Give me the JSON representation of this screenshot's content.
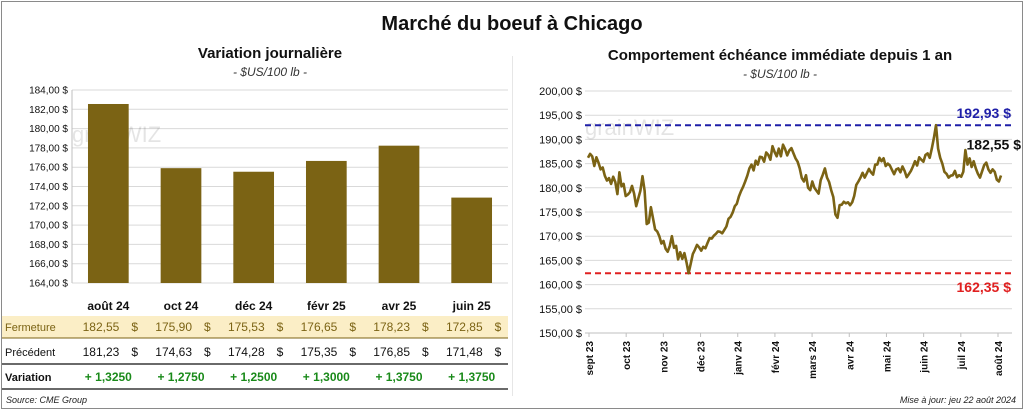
{
  "title": "Marché du boeuf à Chicago",
  "left_panel": {
    "subtitle": "Variation  journalière",
    "unit": "- $US/100 lb -",
    "watermark": "grainWIZ",
    "table": {
      "row_labels": [
        "Fermeture",
        "Précédent",
        "Variation"
      ],
      "fermeture": [
        "182,55",
        "175,90",
        "175,53",
        "176,65",
        "178,23",
        "172,85"
      ],
      "precedent": [
        "181,23",
        "174,63",
        "174,28",
        "175,35",
        "176,85",
        "171,48"
      ],
      "variation": [
        "+ 1,3250",
        "+ 1,2750",
        "+ 1,2500",
        "+ 1,3000",
        "+ 1,3750",
        "+ 1,3750"
      ],
      "currency": "$"
    },
    "source": "Source: CME Group"
  },
  "right_panel": {
    "subtitle": "Comportement  échéance immédiate depuis 1 an",
    "unit": "- $US/100 lb -",
    "watermark": "grainWIZ",
    "update": "Mise à jour: jeu 22 août 2024"
  },
  "colors": {
    "bar": "#7b6314",
    "line": "#7b6314",
    "max": "#1f1fa8",
    "min": "#e02020",
    "table_bg": "#fbeec6",
    "variation": "#1a8a1a"
  },
  "chart_data": [
    {
      "type": "bar",
      "categories": [
        "août 24",
        "oct 24",
        "déc 24",
        "févr 25",
        "avr 25",
        "juin 25"
      ],
      "values": [
        182.55,
        175.9,
        175.53,
        176.65,
        178.23,
        172.85
      ],
      "ylim": [
        164,
        184
      ],
      "yticks": [
        "164,00 $",
        "166,00 $",
        "168,00 $",
        "170,00 $",
        "172,00 $",
        "174,00 $",
        "176,00 $",
        "178,00 $",
        "180,00 $",
        "182,00 $",
        "184,00 $"
      ],
      "grid": true
    },
    {
      "type": "line",
      "ylim": [
        150,
        200
      ],
      "yticks": [
        "150,00 $",
        "155,00 $",
        "160,00 $",
        "165,00 $",
        "170,00 $",
        "175,00 $",
        "180,00 $",
        "185,00 $",
        "190,00 $",
        "195,00 $",
        "200,00 $"
      ],
      "xticks": [
        "sept 23",
        "oct 23",
        "nov 23",
        "déc 23",
        "janv 24",
        "févr 24",
        "mars 24",
        "avr 24",
        "mai 24",
        "juin 24",
        "juil 24",
        "août 24"
      ],
      "series": [
        {
          "values": [
            186.2,
            187.0,
            186.5,
            184.5,
            186.3,
            185.2,
            183.8,
            184.2,
            182.5,
            181.5,
            182.0,
            180.8,
            182.3,
            181.2,
            178.7,
            183.2,
            180.3,
            180.8,
            178.3,
            178.6,
            179.1,
            180.4,
            178.8,
            176.2,
            177.8,
            179.4,
            182.4,
            179.4,
            172.5,
            172.8,
            176.0,
            173.7,
            171.4,
            171.0,
            170.0,
            168.5,
            169.0,
            167.4,
            166.8,
            168.0,
            170.0,
            167.6,
            168.0,
            165.2,
            166.7,
            165.3,
            166.5,
            164.6,
            162.35,
            164.3,
            166.3,
            167.2,
            168.2,
            167.7,
            167.0,
            167.8,
            167.5,
            168.6,
            169.6,
            169.5,
            170.1,
            170.5,
            171.0,
            170.9,
            170.6,
            171.3,
            172.0,
            173.6,
            174.0,
            174.9,
            176.2,
            176.7,
            178.2,
            179.3,
            180.2,
            181.3,
            182.5,
            184.0,
            184.8,
            183.6,
            185.6,
            184.8,
            186.4,
            186.3,
            185.4,
            187.3,
            186.8,
            185.8,
            188.6,
            187.4,
            186.5,
            188.1,
            186.5,
            188.9,
            188.0,
            186.7,
            187.7,
            188.2,
            187.1,
            186.1,
            185.4,
            184.0,
            182.0,
            181.3,
            182.6,
            180.0,
            179.5,
            181.3,
            180.0,
            179.4,
            178.8,
            181.6,
            182.7,
            184.0,
            182.1,
            181.2,
            179.5,
            178.1,
            174.5,
            173.8,
            176.4,
            176.5,
            177.1,
            176.8,
            177.0,
            176.4,
            177.0,
            178.3,
            180.6,
            181.3,
            182.1,
            183.1,
            182.1,
            183.0,
            183.9,
            183.2,
            182.7,
            184.8,
            184.8,
            186.2,
            185.5,
            186.1,
            184.5,
            185.0,
            184.6,
            183.7,
            182.8,
            183.8,
            184.0,
            183.2,
            184.4,
            183.5,
            182.2,
            182.8,
            183.5,
            184.4,
            185.5,
            184.6,
            186.3,
            185.8,
            185.4,
            186.8,
            187.1,
            186.2,
            188.1,
            190.3,
            192.93,
            188.1,
            186.2,
            185.0,
            183.3,
            182.9,
            182.1,
            182.5,
            182.6,
            183.5,
            182.2,
            182.6,
            182.3,
            183.3,
            187.8,
            184.8,
            186.1,
            184.3,
            185.5,
            184.0,
            182.9,
            182.1,
            183.4,
            184.7,
            185.2,
            183.8,
            183.1,
            183.8,
            183.3,
            181.7,
            181.3,
            182.55
          ],
          "color": "#7b6314"
        }
      ],
      "max": {
        "value": 192.93,
        "label": "192,93 $"
      },
      "min": {
        "value": 162.35,
        "label": "162,35 $"
      },
      "last": {
        "value": 182.55,
        "label": "182,55 $"
      },
      "grid": true
    }
  ]
}
